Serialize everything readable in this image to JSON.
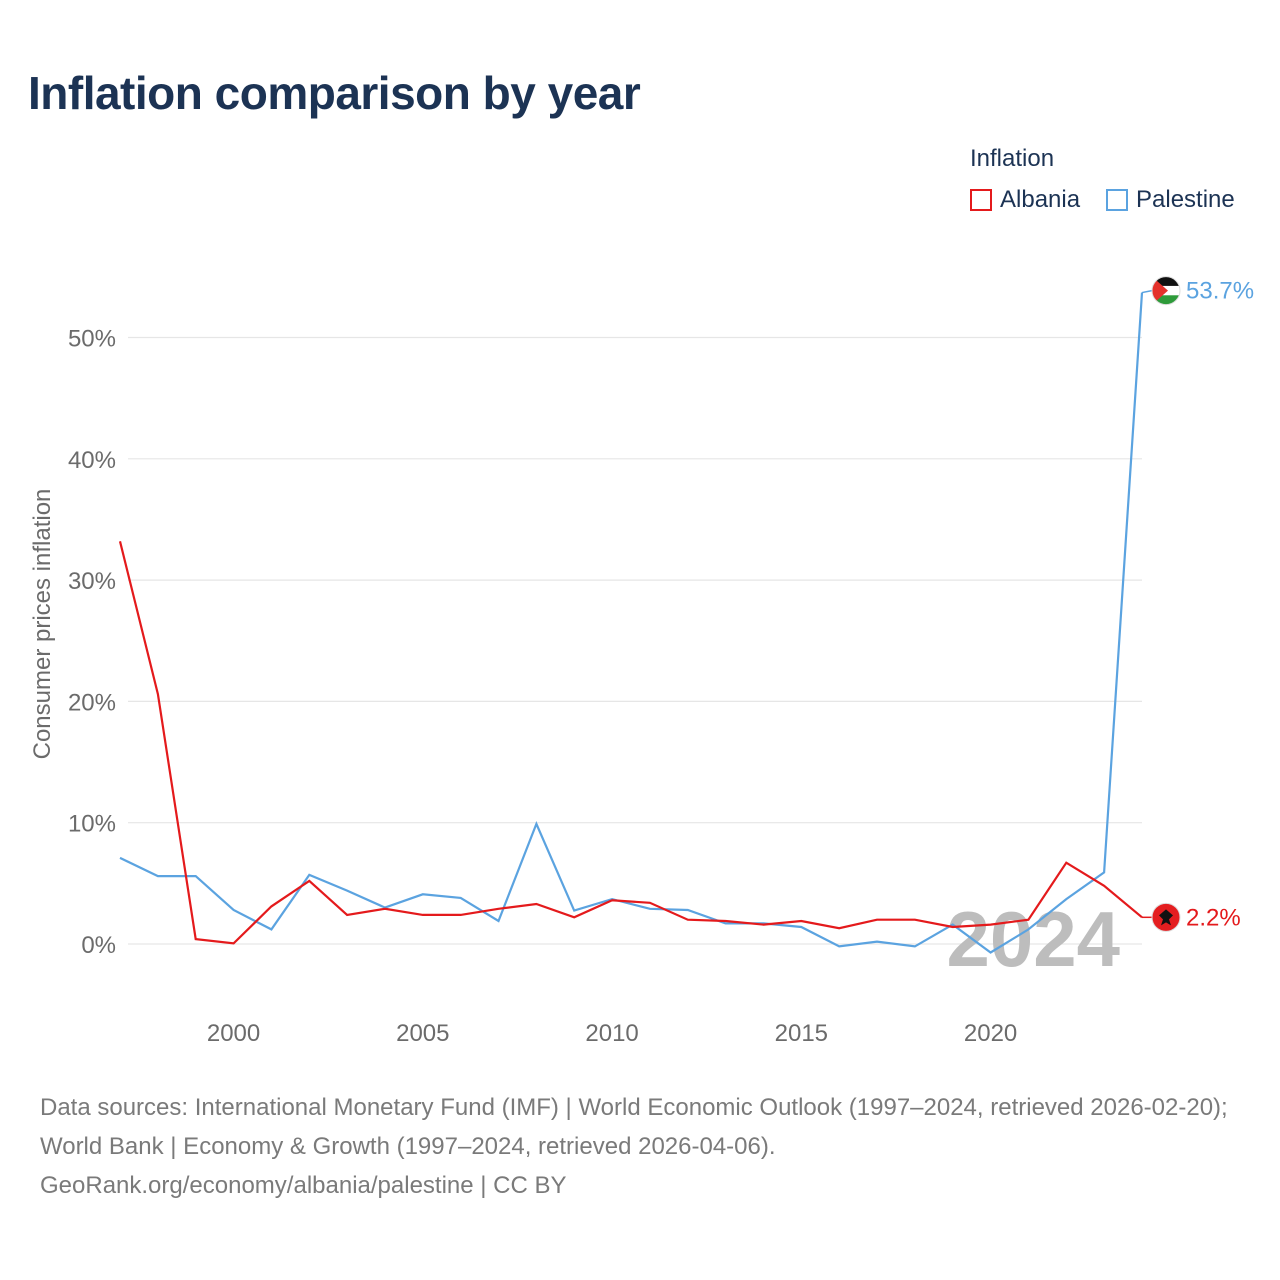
{
  "title": "Inflation comparison by year",
  "legend": {
    "title": "Inflation",
    "items": [
      {
        "label": "Albania",
        "color": "#e41a1c"
      },
      {
        "label": "Palestine",
        "color": "#5ba3e0"
      }
    ]
  },
  "chart_data": {
    "type": "line",
    "title": "Inflation comparison by year",
    "xlabel": "",
    "ylabel": "Consumer prices inflation",
    "xlim": [
      1997,
      2024
    ],
    "ylim": [
      -5,
      57
    ],
    "yticks": [
      0,
      10,
      20,
      30,
      40,
      50
    ],
    "ytick_labels": [
      "0%",
      "10%",
      "20%",
      "30%",
      "40%",
      "50%"
    ],
    "xticks": [
      2000,
      2005,
      2010,
      2015,
      2020
    ],
    "xtick_labels": [
      "2000",
      "2005",
      "2010",
      "2015",
      "2020"
    ],
    "grid": true,
    "legend_position": "top-right",
    "watermark": "2024",
    "x": [
      1997,
      1998,
      1999,
      2000,
      2001,
      2002,
      2003,
      2004,
      2005,
      2006,
      2007,
      2008,
      2009,
      2010,
      2011,
      2012,
      2013,
      2014,
      2015,
      2016,
      2017,
      2018,
      2019,
      2020,
      2021,
      2022,
      2023,
      2024
    ],
    "series": [
      {
        "name": "Albania",
        "color": "#e41a1c",
        "end_label": "2.2%",
        "flag": "albania-flag",
        "values": [
          33.2,
          20.6,
          0.4,
          0.05,
          3.1,
          5.2,
          2.4,
          2.9,
          2.4,
          2.4,
          2.9,
          3.3,
          2.2,
          3.6,
          3.4,
          2.0,
          1.9,
          1.6,
          1.9,
          1.3,
          2.0,
          2.0,
          1.4,
          1.6,
          2.0,
          6.7,
          4.8,
          2.2
        ]
      },
      {
        "name": "Palestine",
        "color": "#5ba3e0",
        "end_label": "53.7%",
        "flag": "palestine-flag",
        "values": [
          7.1,
          5.6,
          5.6,
          2.8,
          1.2,
          5.7,
          4.4,
          3.0,
          4.1,
          3.8,
          1.9,
          9.9,
          2.75,
          3.7,
          2.9,
          2.8,
          1.7,
          1.7,
          1.4,
          -0.2,
          0.2,
          -0.2,
          1.6,
          -0.7,
          1.2,
          3.7,
          5.9,
          53.7
        ]
      }
    ]
  },
  "footer": {
    "line1": "Data sources: International Monetary Fund (IMF) | World Economic Outlook (1997–2024, retrieved 2026-02-20); World Bank | Economy & Growth (1997–2024, retrieved 2026-04-06).",
    "line2": "GeoRank.org/economy/albania/palestine | CC BY"
  }
}
